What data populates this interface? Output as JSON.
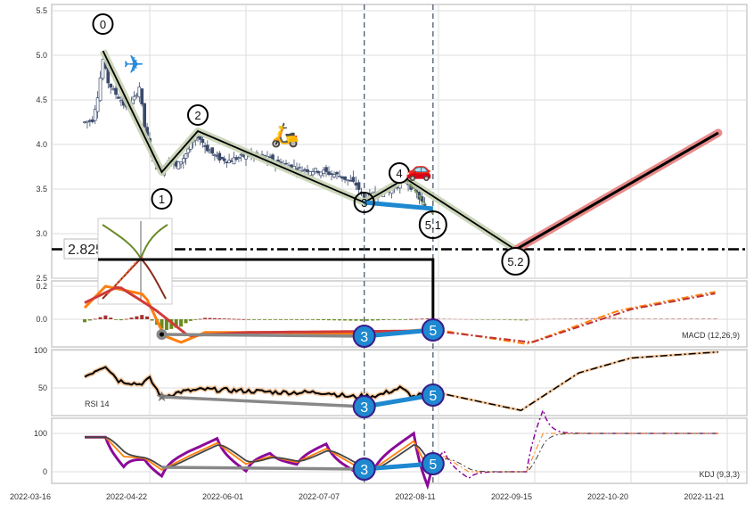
{
  "chart_data": {
    "type": "candlestick-with-indicators",
    "x_ticks": [
      "2022-03-16",
      "2022-04-22",
      "2022-06-01",
      "2022-07-07",
      "2022-08-11",
      "2022-09-15",
      "2022-10-20",
      "2022-11-21"
    ],
    "grid": true,
    "price_panel": {
      "ylim": [
        2.5,
        5.5
      ],
      "yticks": [
        "5.5",
        "5.0",
        "4.5",
        "4.0",
        "3.5",
        "3.0",
        "2.5"
      ],
      "close": [
        [
          "2022-03-28",
          4.25
        ],
        [
          "2022-03-31",
          4.28
        ],
        [
          "2022-04-02",
          4.55
        ],
        [
          "2022-04-04",
          4.95
        ],
        [
          "2022-04-06",
          4.7
        ],
        [
          "2022-04-08",
          4.6
        ],
        [
          "2022-04-11",
          4.5
        ],
        [
          "2022-04-13",
          4.4
        ],
        [
          "2022-04-15",
          4.45
        ],
        [
          "2022-04-18",
          4.65
        ],
        [
          "2022-04-20",
          4.2
        ],
        [
          "2022-04-22",
          3.95
        ],
        [
          "2022-04-25",
          3.75
        ],
        [
          "2022-04-27",
          3.72
        ],
        [
          "2022-04-30",
          3.85
        ],
        [
          "2022-05-03",
          3.75
        ],
        [
          "2022-05-06",
          3.85
        ],
        [
          "2022-05-09",
          4.0
        ],
        [
          "2022-05-12",
          4.1
        ],
        [
          "2022-05-16",
          3.95
        ],
        [
          "2022-05-20",
          3.85
        ],
        [
          "2022-05-25",
          3.82
        ],
        [
          "2022-06-01",
          3.88
        ],
        [
          "2022-06-08",
          3.85
        ],
        [
          "2022-06-15",
          3.78
        ],
        [
          "2022-06-22",
          3.72
        ],
        [
          "2022-06-29",
          3.7
        ],
        [
          "2022-07-06",
          3.65
        ],
        [
          "2022-07-12",
          3.55
        ],
        [
          "2022-07-15",
          3.4
        ],
        [
          "2022-07-20",
          3.45
        ],
        [
          "2022-07-25",
          3.5
        ],
        [
          "2022-07-30",
          3.6
        ],
        [
          "2022-08-03",
          3.45
        ],
        [
          "2022-08-06",
          3.3
        ]
      ],
      "wave_pivots": [
        {
          "label": "0",
          "date": "2022-04-04",
          "value": 5.05
        },
        {
          "label": "1",
          "date": "2022-04-27",
          "value": 3.69
        },
        {
          "label": "2",
          "date": "2022-05-12",
          "value": 4.15
        },
        {
          "label": "3",
          "date": "2022-07-15",
          "value": 3.35
        },
        {
          "label": "4",
          "date": "2022-07-30",
          "value": 3.62
        },
        {
          "label": "5.1",
          "date": "2022-08-09",
          "value": 3.22
        },
        {
          "label": "5.2",
          "date": "2022-09-08",
          "value": 2.82
        }
      ],
      "projection_end": {
        "date": "2022-11-18",
        "value": 4.13
      },
      "level": {
        "label": "2.825",
        "value": 2.825
      },
      "marker_dates": [
        "2022-07-15",
        "2022-08-09"
      ],
      "icons": [
        "airplane-icon",
        "scooter-icon",
        "car-icon"
      ]
    },
    "macd_panel": {
      "label": "MACD (12,26,9)",
      "ylim": [
        -0.17,
        0.22
      ],
      "yticks": [
        "0.2",
        "0.0"
      ],
      "dif": [
        [
          "2022-03-28",
          0.07
        ],
        [
          "2022-04-05",
          0.2
        ],
        [
          "2022-04-20",
          0.15
        ],
        [
          "2022-04-28",
          -0.1
        ],
        [
          "2022-05-05",
          -0.14
        ],
        [
          "2022-05-15",
          -0.08
        ],
        [
          "2022-06-15",
          -0.08
        ],
        [
          "2022-07-15",
          -0.09
        ],
        [
          "2022-08-09",
          -0.06
        ],
        [
          "2022-09-12",
          -0.15
        ],
        [
          "2022-10-15",
          0.05
        ],
        [
          "2022-11-18",
          0.17
        ]
      ],
      "dea": [
        [
          "2022-03-28",
          0.1
        ],
        [
          "2022-04-10",
          0.2
        ],
        [
          "2022-04-25",
          0.05
        ],
        [
          "2022-05-08",
          -0.1
        ],
        [
          "2022-06-01",
          -0.08
        ],
        [
          "2022-08-09",
          -0.07
        ],
        [
          "2022-09-14",
          -0.14
        ],
        [
          "2022-10-20",
          0.06
        ],
        [
          "2022-11-18",
          0.16
        ]
      ]
    },
    "rsi_panel": {
      "label": "RSI 14",
      "ylim": [
        14,
        100
      ],
      "yticks": [
        "100",
        "50"
      ],
      "rsi": [
        [
          "2022-03-28",
          65
        ],
        [
          "2022-04-02",
          75
        ],
        [
          "2022-04-05",
          80
        ],
        [
          "2022-04-10",
          60
        ],
        [
          "2022-04-18",
          55
        ],
        [
          "2022-04-22",
          62
        ],
        [
          "2022-04-27",
          38
        ],
        [
          "2022-05-05",
          45
        ],
        [
          "2022-05-15",
          48
        ],
        [
          "2022-06-01",
          46
        ],
        [
          "2022-06-15",
          44
        ],
        [
          "2022-07-01",
          44
        ],
        [
          "2022-07-10",
          38
        ],
        [
          "2022-07-20",
          40
        ],
        [
          "2022-07-28",
          50
        ],
        [
          "2022-08-02",
          38
        ],
        [
          "2022-08-09",
          45
        ],
        [
          "2022-09-10",
          20
        ],
        [
          "2022-10-01",
          70
        ],
        [
          "2022-10-20",
          90
        ],
        [
          "2022-11-18",
          98
        ]
      ]
    },
    "kdj_panel": {
      "label": "KDJ (9,3,3)",
      "ylim": [
        -30,
        140
      ],
      "yticks": [
        "100",
        "0"
      ],
      "k": [
        [
          "2022-03-28",
          90
        ],
        [
          "2022-04-05",
          90
        ],
        [
          "2022-04-12",
          40
        ],
        [
          "2022-04-20",
          35
        ],
        [
          "2022-04-27",
          5
        ],
        [
          "2022-05-08",
          40
        ],
        [
          "2022-05-20",
          75
        ],
        [
          "2022-06-01",
          20
        ],
        [
          "2022-06-10",
          40
        ],
        [
          "2022-06-20",
          25
        ],
        [
          "2022-07-01",
          60
        ],
        [
          "2022-07-12",
          15
        ],
        [
          "2022-07-18",
          5
        ],
        [
          "2022-07-25",
          40
        ],
        [
          "2022-08-02",
          80
        ],
        [
          "2022-08-07",
          10
        ],
        [
          "2022-08-13",
          40
        ],
        [
          "2022-08-22",
          0
        ],
        [
          "2022-09-12",
          0
        ],
        [
          "2022-09-18",
          100
        ],
        [
          "2022-11-18",
          100
        ]
      ]
    },
    "divergence_labels": [
      "3",
      "5"
    ]
  }
}
